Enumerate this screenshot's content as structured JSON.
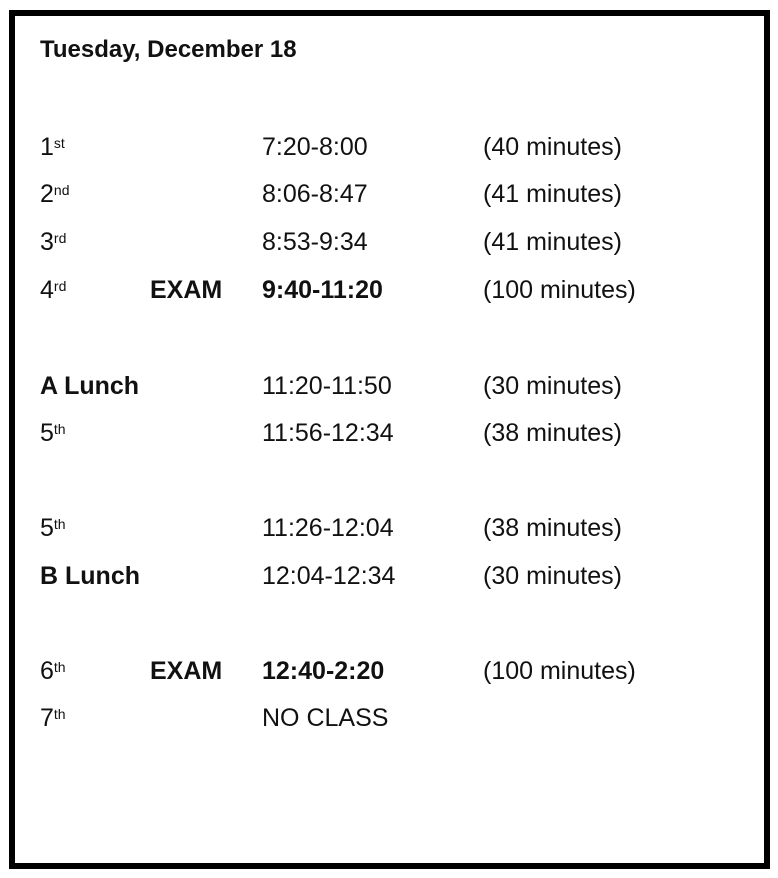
{
  "title": "Tuesday, December 18",
  "rows": [
    {
      "period": "1",
      "suffix": "st",
      "label": "",
      "time": "7:20-8:00",
      "duration": "(40 minutes)",
      "bold_period": false,
      "bold_time": false
    },
    {
      "period": "2",
      "suffix": "nd",
      "label": "",
      "time": "8:06-8:47",
      "duration": "(41 minutes)",
      "bold_period": false,
      "bold_time": false
    },
    {
      "period": "3",
      "suffix": "rd",
      "label": "",
      "time": "8:53-9:34",
      "duration": "(41 minutes)",
      "bold_period": false,
      "bold_time": false
    },
    {
      "period": "4",
      "suffix": "rd",
      "label": "EXAM",
      "time": "9:40-11:20",
      "duration": "(100 minutes)",
      "bold_period": false,
      "bold_time": true
    },
    {
      "period": "A Lunch",
      "suffix": "",
      "label": "",
      "time": "11:20-11:50",
      "duration": "(30 minutes)",
      "bold_period": true,
      "bold_time": false
    },
    {
      "period": "5",
      "suffix": "th",
      "label": "",
      "time": "11:56-12:34",
      "duration": "(38 minutes)",
      "bold_period": false,
      "bold_time": false
    },
    {
      "period": "5",
      "suffix": "th",
      "label": "",
      "time": "11:26-12:04",
      "duration": "(38 minutes)",
      "bold_period": false,
      "bold_time": false
    },
    {
      "period": "B Lunch",
      "suffix": "",
      "label": "",
      "time": "12:04-12:34",
      "duration": "(30 minutes)",
      "bold_period": true,
      "bold_time": false
    },
    {
      "period": "6",
      "suffix": "th",
      "label": "EXAM",
      "time": "12:40-2:20",
      "duration": "(100 minutes)",
      "bold_period": false,
      "bold_time": true
    },
    {
      "period": "7",
      "suffix": "th",
      "label": "",
      "time": "NO CLASS",
      "duration": "",
      "bold_period": false,
      "bold_time": false
    }
  ]
}
